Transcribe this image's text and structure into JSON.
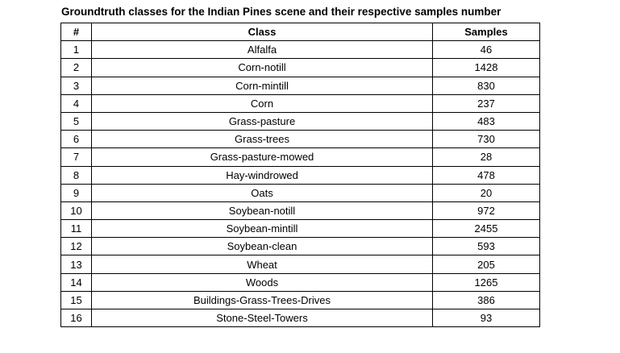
{
  "caption": "Groundtruth classes for the Indian Pines scene and their respective samples number",
  "table": {
    "headers": [
      "#",
      "Class",
      "Samples"
    ],
    "rows": [
      [
        "1",
        "Alfalfa",
        "46"
      ],
      [
        "2",
        "Corn-notill",
        "1428"
      ],
      [
        "3",
        "Corn-mintill",
        "830"
      ],
      [
        "4",
        "Corn",
        "237"
      ],
      [
        "5",
        "Grass-pasture",
        "483"
      ],
      [
        "6",
        "Grass-trees",
        "730"
      ],
      [
        "7",
        "Grass-pasture-mowed",
        "28"
      ],
      [
        "8",
        "Hay-windrowed",
        "478"
      ],
      [
        "9",
        "Oats",
        "20"
      ],
      [
        "10",
        "Soybean-notill",
        "972"
      ],
      [
        "11",
        "Soybean-mintill",
        "2455"
      ],
      [
        "12",
        "Soybean-clean",
        "593"
      ],
      [
        "13",
        "Wheat",
        "205"
      ],
      [
        "14",
        "Woods",
        "1265"
      ],
      [
        "15",
        "Buildings-Grass-Trees-Drives",
        "386"
      ],
      [
        "16",
        "Stone-Steel-Towers",
        "93"
      ]
    ]
  }
}
